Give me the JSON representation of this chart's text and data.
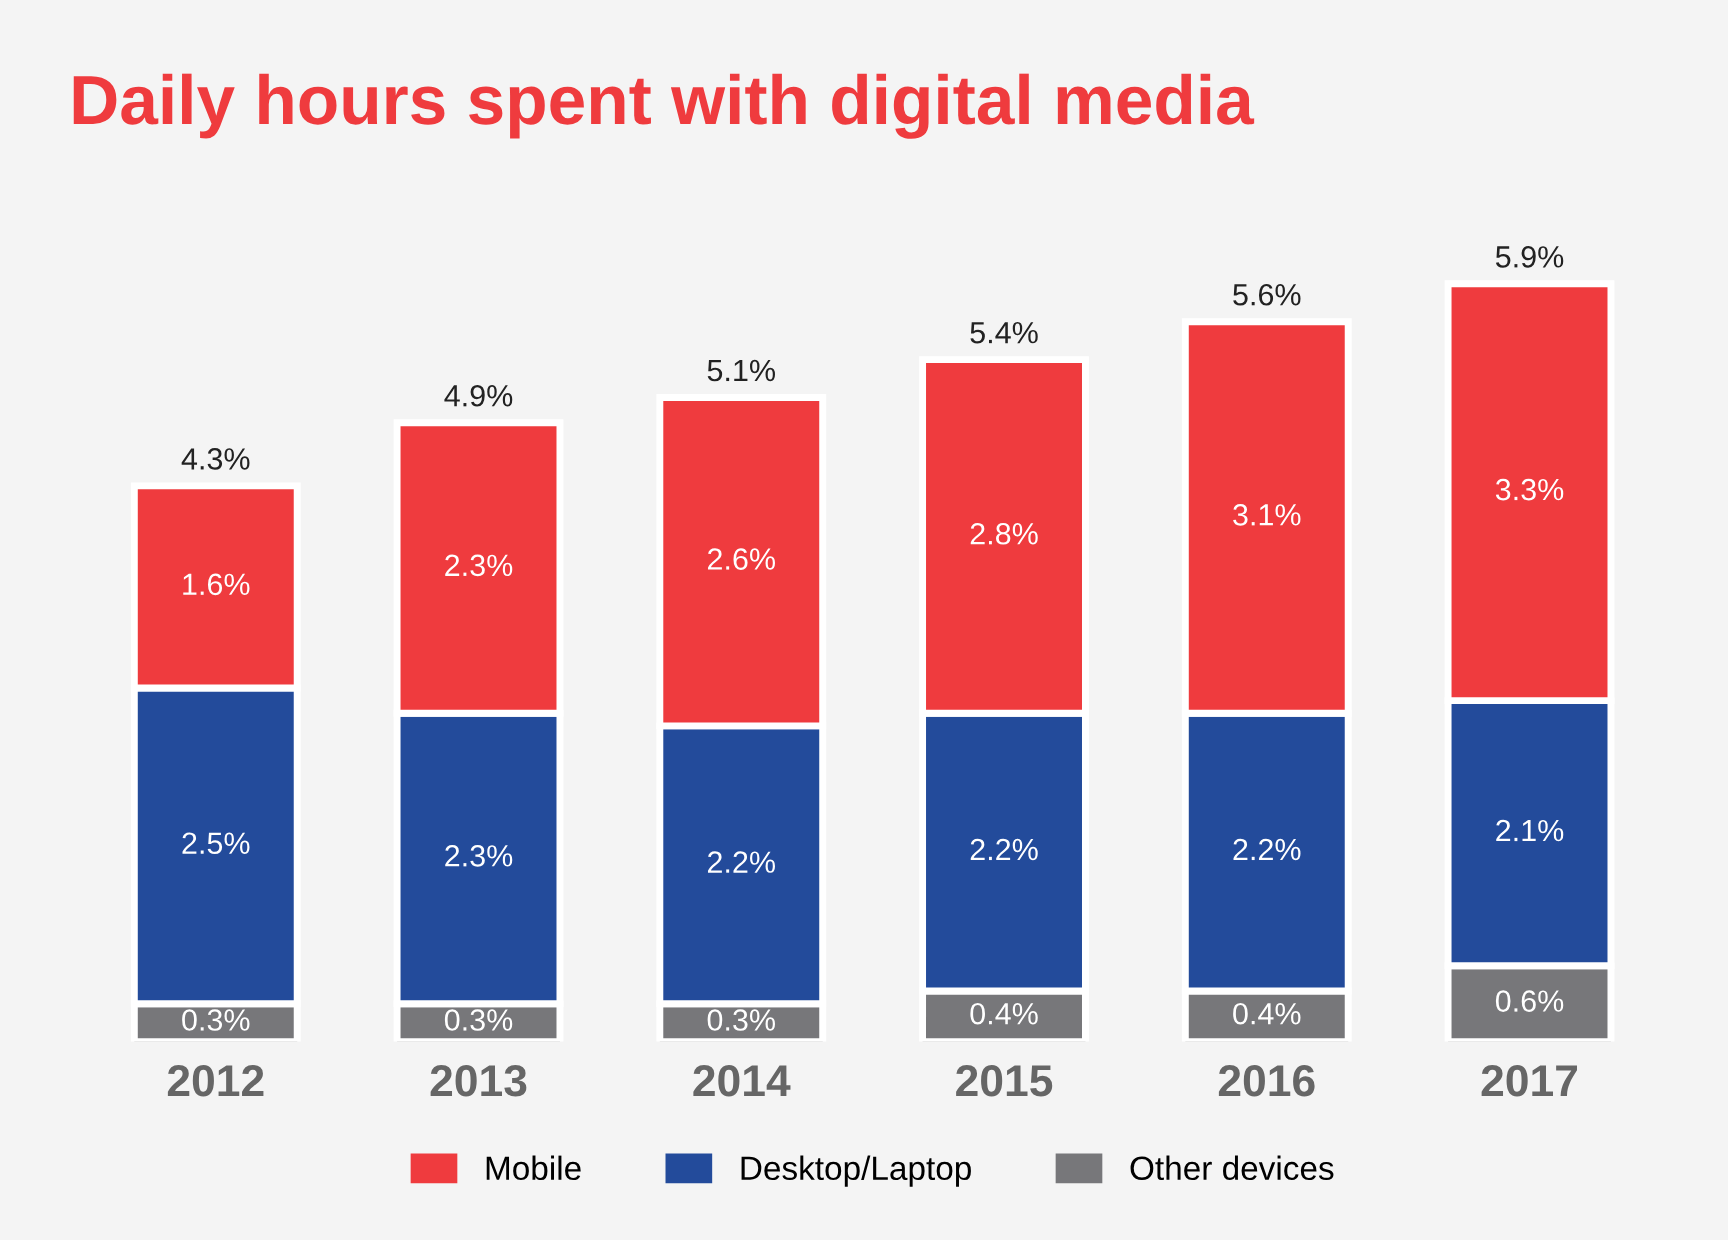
{
  "chart_data": {
    "type": "bar",
    "title": "Daily hours spent with digital media",
    "categories": [
      "2012",
      "2013",
      "2014",
      "2015",
      "2016",
      "2017"
    ],
    "stacked": true,
    "series": [
      {
        "name": "Other devices",
        "color": "#77777a",
        "values": [
          0.3,
          0.3,
          0.3,
          0.4,
          0.4,
          0.6
        ],
        "value_labels": [
          "0.3%",
          "0.3%",
          "0.3%",
          "0.4%",
          "0.4%",
          "0.6%"
        ]
      },
      {
        "name": "Desktop/Laptop",
        "color": "#234b9b",
        "values": [
          2.5,
          2.3,
          2.2,
          2.2,
          2.2,
          2.1
        ],
        "value_labels": [
          "2.5%",
          "2.3%",
          "2.2%",
          "2.2%",
          "2.2%",
          "2.1%"
        ]
      },
      {
        "name": "Mobile",
        "color": "#ef3b3e",
        "values": [
          1.6,
          2.3,
          2.6,
          2.8,
          3.1,
          3.3
        ],
        "value_labels": [
          "1.6%",
          "2.3%",
          "2.6%",
          "2.8%",
          "3.1%",
          "3.3%"
        ]
      }
    ],
    "totals": [
      "4.3%",
      "4.9%",
      "5.1%",
      "5.4%",
      "5.6%",
      "5.9%"
    ],
    "legend": "bottom",
    "grid": false
  }
}
